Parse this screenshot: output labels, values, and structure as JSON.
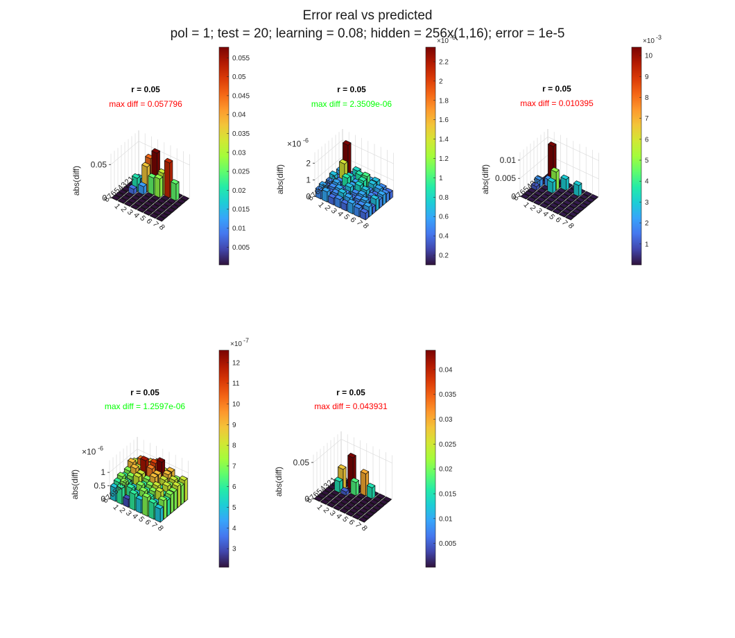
{
  "title_line1": "Error real vs predicted",
  "title_line2": "pol = 1; test = 20; learning = 0.08; hidden = 256x(1,16); error = 1e-5",
  "chart_data": [
    {
      "type": "bar3d",
      "title": "r = 0.05",
      "max_diff_label": "max diff = 0.057796",
      "max_diff_color": "#ff0000",
      "zlabel": "abs(diff)",
      "zlim": [
        0,
        0.06
      ],
      "zticks": [
        "0",
        "0.05"
      ],
      "zexponent": "",
      "row_ticks": [
        "1",
        "2",
        "3",
        "4",
        "5",
        "6",
        "7",
        "8"
      ],
      "col_ticks": [
        "1",
        "2",
        "3",
        "4",
        "5",
        "6",
        "7",
        "8"
      ],
      "colorbar": {
        "min": 0.0003,
        "max": 0.0578,
        "exponent": "",
        "ticks": [
          "0.005",
          "0.01",
          "0.015",
          "0.02",
          "0.025",
          "0.03",
          "0.035",
          "0.04",
          "0.045",
          "0.05",
          "0.055"
        ],
        "tick_values": [
          0.005,
          0.01,
          0.015,
          0.02,
          0.025,
          0.03,
          0.035,
          0.04,
          0.045,
          0.05,
          0.055
        ]
      },
      "matrix": [
        [
          0.0003,
          0.0003,
          0.0003,
          0.0003,
          0.0003,
          0.0003,
          0.0003,
          0.0003
        ],
        [
          0.0003,
          0.0003,
          0.045,
          0.0577,
          0.032,
          0.052,
          0.025,
          0.0003
        ],
        [
          0.0003,
          0.015,
          0.037,
          0.025,
          0.028,
          0.0003,
          0.0003,
          0.0003
        ],
        [
          0.0003,
          0.02,
          0.012,
          0.0003,
          0.0003,
          0.0003,
          0.0003,
          0.0003
        ],
        [
          0.0003,
          0.008,
          0.0003,
          0.0003,
          0.0003,
          0.0003,
          0.0003,
          0.0003
        ],
        [
          0.0003,
          0.0003,
          0.0003,
          0.0003,
          0.0003,
          0.0003,
          0.0003,
          0.0003
        ],
        [
          0.0003,
          0.0003,
          0.0003,
          0.0003,
          0.0003,
          0.0003,
          0.0003,
          0.0003
        ],
        [
          0.0003,
          0.0003,
          0.0003,
          0.0003,
          0.0003,
          0.0003,
          0.0003,
          0.0003
        ]
      ]
    },
    {
      "type": "bar3d",
      "title": "r = 0.05",
      "max_diff_label": "max diff = 2.3509e-06",
      "max_diff_color": "#00ff00",
      "zlabel": "abs(diff)",
      "zlim": [
        0,
        2.4
      ],
      "zticks": [
        "0",
        "1",
        "2"
      ],
      "zexponent": "-6",
      "row_ticks": [
        "1",
        "2",
        "3",
        "4",
        "5",
        "6",
        "7",
        "8"
      ],
      "col_ticks": [
        "1",
        "2",
        "3",
        "4",
        "5",
        "6",
        "7",
        "8"
      ],
      "colorbar": {
        "min": 0.1,
        "max": 2.35,
        "exponent": "-6",
        "ticks": [
          "0.2",
          "0.4",
          "0.6",
          "0.8",
          "1",
          "1.2",
          "1.4",
          "1.6",
          "1.8",
          "2",
          "2.2"
        ],
        "tick_values": [
          0.2,
          0.4,
          0.6,
          0.8,
          1.0,
          1.2,
          1.4,
          1.6,
          1.8,
          2.0,
          2.2
        ]
      },
      "matrix": [
        [
          0.5,
          0.4,
          0.8,
          0.5,
          0.6,
          0.7,
          0.5,
          0.4
        ],
        [
          0.6,
          2.35,
          0.5,
          0.9,
          1.0,
          0.7,
          0.6,
          0.5
        ],
        [
          0.4,
          1.4,
          0.8,
          0.6,
          0.9,
          0.5,
          0.4,
          0.6
        ],
        [
          0.7,
          0.5,
          0.9,
          0.6,
          0.8,
          0.7,
          0.5,
          0.5
        ],
        [
          0.5,
          0.6,
          0.4,
          0.7,
          0.5,
          0.6,
          0.4,
          0.7
        ],
        [
          0.4,
          0.5,
          0.6,
          0.5,
          0.4,
          0.5,
          0.6,
          0.4
        ],
        [
          0.6,
          0.4,
          0.5,
          0.7,
          0.6,
          0.4,
          0.5,
          0.6
        ],
        [
          0.5,
          0.6,
          0.4,
          0.5,
          0.4,
          0.6,
          0.5,
          0.4
        ]
      ]
    },
    {
      "type": "bar3d",
      "title": "r = 0.05",
      "max_diff_label": "max diff = 0.010395",
      "max_diff_color": "#ff0000",
      "zlabel": "abs(diff)",
      "zlim": [
        0,
        0.011
      ],
      "zticks": [
        "0",
        "0.005",
        "0.01"
      ],
      "zexponent": "",
      "row_ticks": [
        "1",
        "2",
        "3",
        "4",
        "5",
        "6",
        "7",
        "8"
      ],
      "col_ticks": [
        "1",
        "2",
        "3",
        "4",
        "5",
        "6",
        "7",
        "8"
      ],
      "colorbar": {
        "min": 0.0,
        "max": 10.4,
        "exponent": "-3",
        "ticks": [
          "1",
          "2",
          "3",
          "4",
          "5",
          "6",
          "7",
          "8",
          "9",
          "10"
        ],
        "tick_values": [
          1,
          2,
          3,
          4,
          5,
          6,
          7,
          8,
          9,
          10
        ]
      },
      "matrix": [
        [
          0.0001,
          0.0001,
          0.0001,
          0.0001,
          0.0001,
          0.0001,
          0.0001,
          0.0001
        ],
        [
          0.0001,
          0.0104,
          0.0001,
          0.003,
          0.0001,
          0.003,
          0.0001,
          0.0001
        ],
        [
          0.0001,
          0.002,
          0.005,
          0.0001,
          0.0001,
          0.0001,
          0.0001,
          0.0001
        ],
        [
          0.002,
          0.0001,
          0.003,
          0.0001,
          0.0001,
          0.0001,
          0.0001,
          0.0001
        ],
        [
          0.001,
          0.0001,
          0.0001,
          0.0001,
          0.0001,
          0.0001,
          0.0001,
          0.0001
        ],
        [
          0.0001,
          0.0001,
          0.0001,
          0.0001,
          0.0001,
          0.0001,
          0.0001,
          0.0001
        ],
        [
          0.0001,
          0.0001,
          0.0001,
          0.0001,
          0.0001,
          0.0001,
          0.0001,
          0.0001
        ],
        [
          0.0001,
          0.0001,
          0.0001,
          0.0001,
          0.0001,
          0.0001,
          0.0001,
          0.0001
        ]
      ]
    },
    {
      "type": "bar3d",
      "title": "r = 0.05",
      "max_diff_label": "max diff = 1.2597e-06",
      "max_diff_color": "#00ff00",
      "zlabel": "abs(diff)",
      "zlim": [
        0,
        1.3
      ],
      "zticks": [
        "0",
        "0.5",
        "1"
      ],
      "zexponent": "-6",
      "row_ticks": [
        "1",
        "2",
        "3",
        "4",
        "5",
        "6",
        "7",
        "8"
      ],
      "col_ticks": [
        "1",
        "2",
        "3",
        "4",
        "5",
        "6",
        "7",
        "8"
      ],
      "colorbar": {
        "min": 2.1,
        "max": 12.6,
        "exponent": "-7",
        "ticks": [
          "3",
          "4",
          "5",
          "6",
          "7",
          "8",
          "9",
          "10",
          "11",
          "12"
        ],
        "tick_values": [
          3,
          4,
          5,
          6,
          7,
          8,
          9,
          10,
          11,
          12
        ]
      },
      "matrix": [
        [
          0.7,
          0.8,
          0.9,
          1.0,
          0.8,
          0.9,
          0.7,
          0.8
        ],
        [
          0.8,
          1.0,
          0.9,
          1.1,
          1.26,
          0.9,
          0.8,
          0.7
        ],
        [
          0.9,
          0.8,
          1.2,
          1.0,
          0.9,
          0.8,
          0.7,
          0.8
        ],
        [
          0.7,
          0.9,
          0.8,
          0.7,
          0.9,
          0.6,
          0.8,
          0.7
        ],
        [
          0.6,
          0.7,
          0.8,
          0.6,
          0.7,
          0.8,
          0.6,
          0.7
        ],
        [
          0.7,
          0.6,
          0.5,
          0.7,
          0.6,
          0.7,
          0.8,
          0.6
        ],
        [
          0.6,
          0.7,
          0.6,
          0.5,
          0.7,
          0.6,
          0.5,
          0.7
        ],
        [
          0.5,
          0.6,
          0.3,
          0.6,
          0.5,
          0.7,
          0.6,
          0.5
        ]
      ]
    },
    {
      "type": "bar3d",
      "title": "r = 0.05",
      "max_diff_label": "max diff = 0.043931",
      "max_diff_color": "#ff0000",
      "zlabel": "abs(diff)",
      "zlim": [
        0,
        0.055
      ],
      "zticks": [
        "0",
        "0.05"
      ],
      "zexponent": "",
      "row_ticks": [
        "1",
        "2",
        "3",
        "4",
        "5",
        "6",
        "7",
        "8"
      ],
      "col_ticks": [
        "1",
        "2",
        "3",
        "4",
        "5",
        "6",
        "7",
        "8"
      ],
      "colorbar": {
        "min": 0.0002,
        "max": 0.0439,
        "exponent": "",
        "ticks": [
          "0.005",
          "0.01",
          "0.015",
          "0.02",
          "0.025",
          "0.03",
          "0.035",
          "0.04"
        ],
        "tick_values": [
          0.005,
          0.01,
          0.015,
          0.02,
          0.025,
          0.03,
          0.035,
          0.04
        ]
      },
      "matrix": [
        [
          0.0002,
          0.0002,
          0.0002,
          0.0002,
          0.0002,
          0.0002,
          0.0002,
          0.0002
        ],
        [
          0.0002,
          0.0002,
          0.0439,
          0.0002,
          0.03,
          0.015,
          0.0002,
          0.0002
        ],
        [
          0.0002,
          0.028,
          0.0002,
          0.018,
          0.0002,
          0.0002,
          0.0002,
          0.0002
        ],
        [
          0.0002,
          0.015,
          0.005,
          0.0002,
          0.0002,
          0.0002,
          0.0002,
          0.0002
        ],
        [
          0.0002,
          0.0002,
          0.0002,
          0.0002,
          0.0002,
          0.0002,
          0.0002,
          0.0002
        ],
        [
          0.0002,
          0.0002,
          0.0002,
          0.0002,
          0.0002,
          0.0002,
          0.0002,
          0.0002
        ],
        [
          0.0002,
          0.0002,
          0.0002,
          0.0002,
          0.0002,
          0.0002,
          0.0002,
          0.0002
        ],
        [
          0.0002,
          0.0002,
          0.0002,
          0.0002,
          0.0002,
          0.0002,
          0.0002,
          0.0002
        ]
      ]
    }
  ]
}
